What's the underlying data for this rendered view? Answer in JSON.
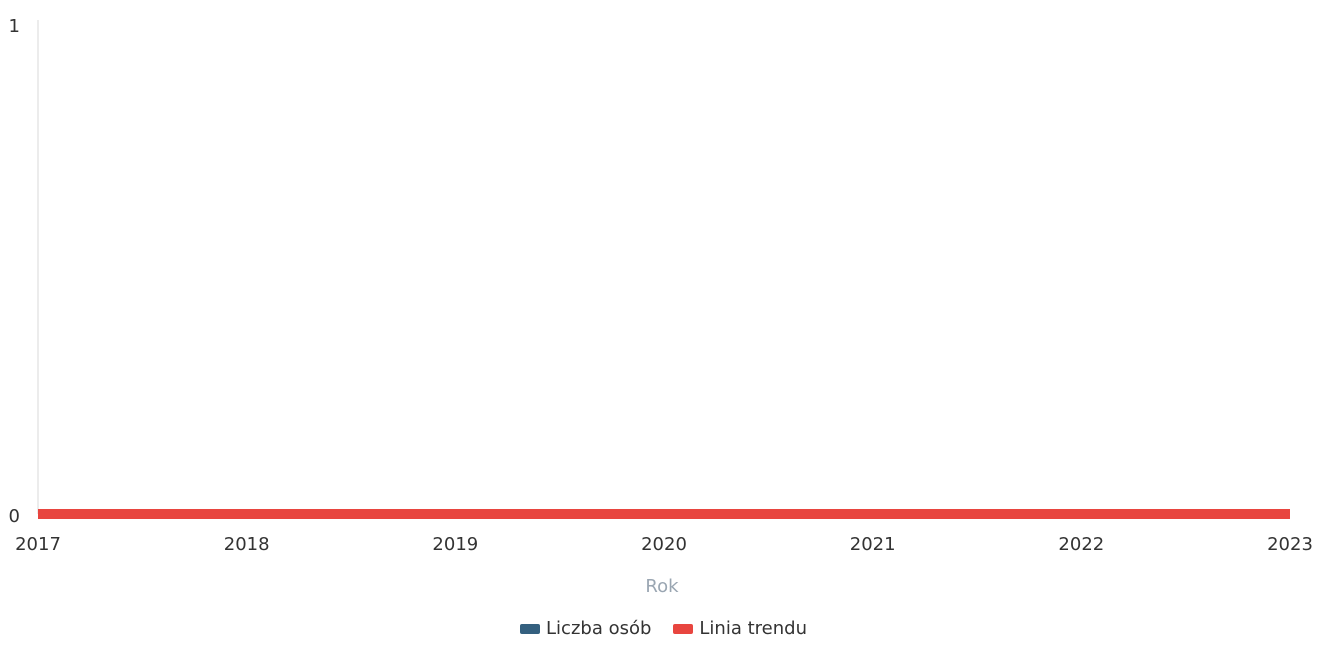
{
  "chart_data": {
    "type": "line",
    "x": [
      "2017",
      "2018",
      "2019",
      "2020",
      "2021",
      "2022",
      "2023"
    ],
    "xlabel": "Rok",
    "ylabel": "",
    "ylim": [
      0,
      1
    ],
    "y_ticks": [
      "0",
      "1"
    ],
    "grid": false,
    "legend_position": "bottom-center",
    "series": [
      {
        "name": "Liczba osób",
        "color": "#34607f",
        "values": [
          0,
          0,
          0,
          0,
          0,
          0,
          0
        ]
      },
      {
        "name": "Linia trendu",
        "color": "#e8453f",
        "values": [
          0,
          0,
          0,
          0,
          0,
          0,
          0
        ]
      }
    ]
  }
}
